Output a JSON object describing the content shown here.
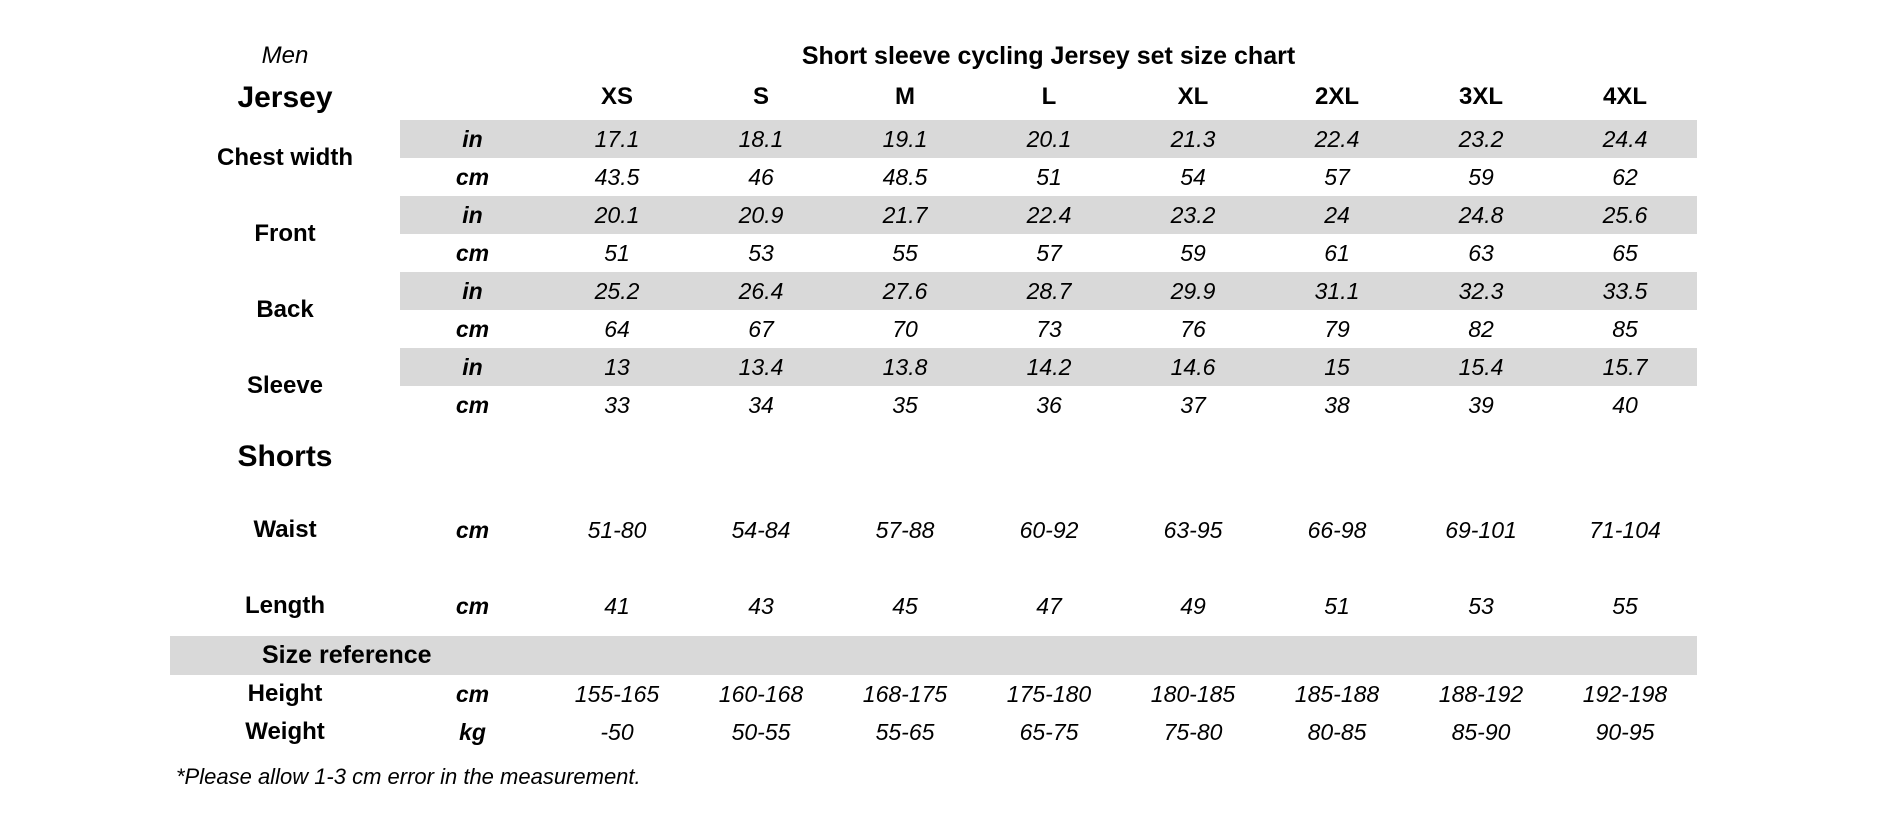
{
  "header": {
    "gender": "Men",
    "title": "Short sleeve cycling Jersey set size chart"
  },
  "sizes": [
    "XS",
    "S",
    "M",
    "L",
    "XL",
    "2XL",
    "3XL",
    "4XL"
  ],
  "jersey": {
    "heading": "Jersey",
    "groups": [
      {
        "label": "Chest width",
        "units": [
          "in",
          "cm"
        ],
        "in": [
          "17.1",
          "18.1",
          "19.1",
          "20.1",
          "21.3",
          "22.4",
          "23.2",
          "24.4"
        ],
        "cm": [
          "43.5",
          "46",
          "48.5",
          "51",
          "54",
          "57",
          "59",
          "62"
        ]
      },
      {
        "label": "Front",
        "units": [
          "in",
          "cm"
        ],
        "in": [
          "20.1",
          "20.9",
          "21.7",
          "22.4",
          "23.2",
          "24",
          "24.8",
          "25.6"
        ],
        "cm": [
          "51",
          "53",
          "55",
          "57",
          "59",
          "61",
          "63",
          "65"
        ]
      },
      {
        "label": "Back",
        "units": [
          "in",
          "cm"
        ],
        "in": [
          "25.2",
          "26.4",
          "27.6",
          "28.7",
          "29.9",
          "31.1",
          "32.3",
          "33.5"
        ],
        "cm": [
          "64",
          "67",
          "70",
          "73",
          "76",
          "79",
          "82",
          "85"
        ]
      },
      {
        "label": "Sleeve",
        "units": [
          "in",
          "cm"
        ],
        "in": [
          "13",
          "13.4",
          "13.8",
          "14.2",
          "14.6",
          "15",
          "15.4",
          "15.7"
        ],
        "cm": [
          "33",
          "34",
          "35",
          "36",
          "37",
          "38",
          "39",
          "40"
        ]
      }
    ]
  },
  "shorts": {
    "heading": "Shorts",
    "rows": [
      {
        "label": "Waist",
        "unit": "cm",
        "values": [
          "51-80",
          "54-84",
          "57-88",
          "60-92",
          "63-95",
          "66-98",
          "69-101",
          "71-104"
        ]
      },
      {
        "label": "Length",
        "unit": "cm",
        "values": [
          "41",
          "43",
          "45",
          "47",
          "49",
          "51",
          "53",
          "55"
        ]
      }
    ]
  },
  "reference": {
    "heading": "Size reference",
    "rows": [
      {
        "label": "Height",
        "unit": "cm",
        "values": [
          "155-165",
          "160-168",
          "168-175",
          "175-180",
          "180-185",
          "185-188",
          "188-192",
          "192-198"
        ]
      },
      {
        "label": "Weight",
        "unit": "kg",
        "values": [
          "-50",
          "50-55",
          "55-65",
          "65-75",
          "75-80",
          "80-85",
          "85-90",
          "90-95"
        ]
      }
    ]
  },
  "footnote": "*Please allow 1-3 cm error in the measurement.",
  "colors": {
    "band": "#d9d9d9",
    "text": "#000000",
    "background": "#ffffff"
  }
}
